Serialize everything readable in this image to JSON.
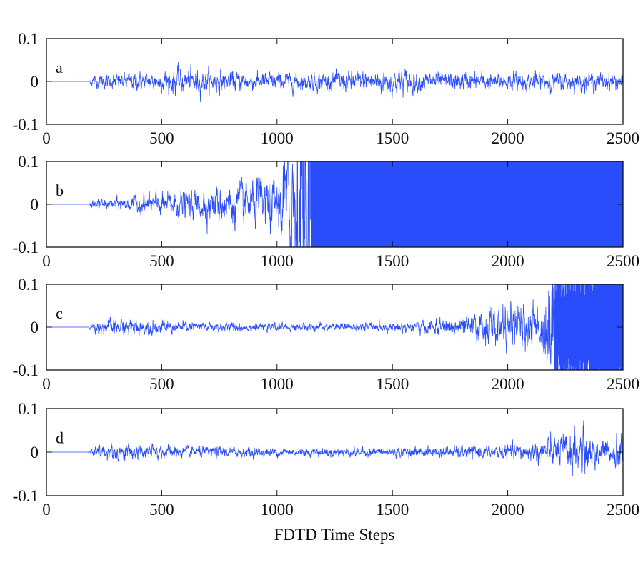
{
  "chart_data": {
    "type": "line",
    "xlabel": "FDTD Time Steps",
    "xlim": [
      0,
      2500
    ],
    "ylim": [
      -0.1,
      0.1
    ],
    "x_ticks": [
      0,
      500,
      1000,
      1500,
      2000,
      2500
    ],
    "x_tick_labels": [
      "0",
      "500",
      "1000",
      "1500",
      "2000",
      "2500"
    ],
    "y_ticks": [
      0.1,
      0,
      -0.1
    ],
    "y_tick_labels": [
      "0.1",
      "0",
      "-0.1"
    ],
    "line_color": "#2a4dfb",
    "grid": false,
    "panels": [
      {
        "label": "a",
        "onset": 180,
        "envelope": [
          [
            180,
            0.0
          ],
          [
            200,
            0.015
          ],
          [
            500,
            0.022
          ],
          [
            560,
            0.03
          ],
          [
            900,
            0.02
          ],
          [
            1200,
            0.02
          ],
          [
            1550,
            0.03
          ],
          [
            1650,
            0.02
          ],
          [
            2500,
            0.02
          ]
        ]
      },
      {
        "label": "b",
        "onset": 180,
        "envelope": [
          [
            180,
            0.0
          ],
          [
            200,
            0.01
          ],
          [
            500,
            0.025
          ],
          [
            800,
            0.045
          ],
          [
            950,
            0.06
          ],
          [
            1000,
            0.05
          ],
          [
            1050,
            0.15
          ],
          [
            1150,
            0.5
          ],
          [
            2500,
            0.5
          ]
        ]
      },
      {
        "label": "c",
        "onset": 180,
        "envelope": [
          [
            180,
            0.0
          ],
          [
            200,
            0.012
          ],
          [
            300,
            0.02
          ],
          [
            600,
            0.013
          ],
          [
            1000,
            0.008
          ],
          [
            1500,
            0.01
          ],
          [
            1700,
            0.018
          ],
          [
            1850,
            0.025
          ],
          [
            1900,
            0.045
          ],
          [
            2100,
            0.05
          ],
          [
            2150,
            0.06
          ],
          [
            2200,
            0.2
          ],
          [
            2500,
            0.3
          ]
        ]
      },
      {
        "label": "d",
        "onset": 180,
        "envelope": [
          [
            180,
            0.0
          ],
          [
            200,
            0.012
          ],
          [
            300,
            0.02
          ],
          [
            600,
            0.013
          ],
          [
            1000,
            0.01
          ],
          [
            1500,
            0.01
          ],
          [
            1900,
            0.015
          ],
          [
            2100,
            0.02
          ],
          [
            2200,
            0.035
          ],
          [
            2330,
            0.055
          ],
          [
            2450,
            0.02
          ],
          [
            2500,
            0.07
          ]
        ]
      }
    ]
  }
}
